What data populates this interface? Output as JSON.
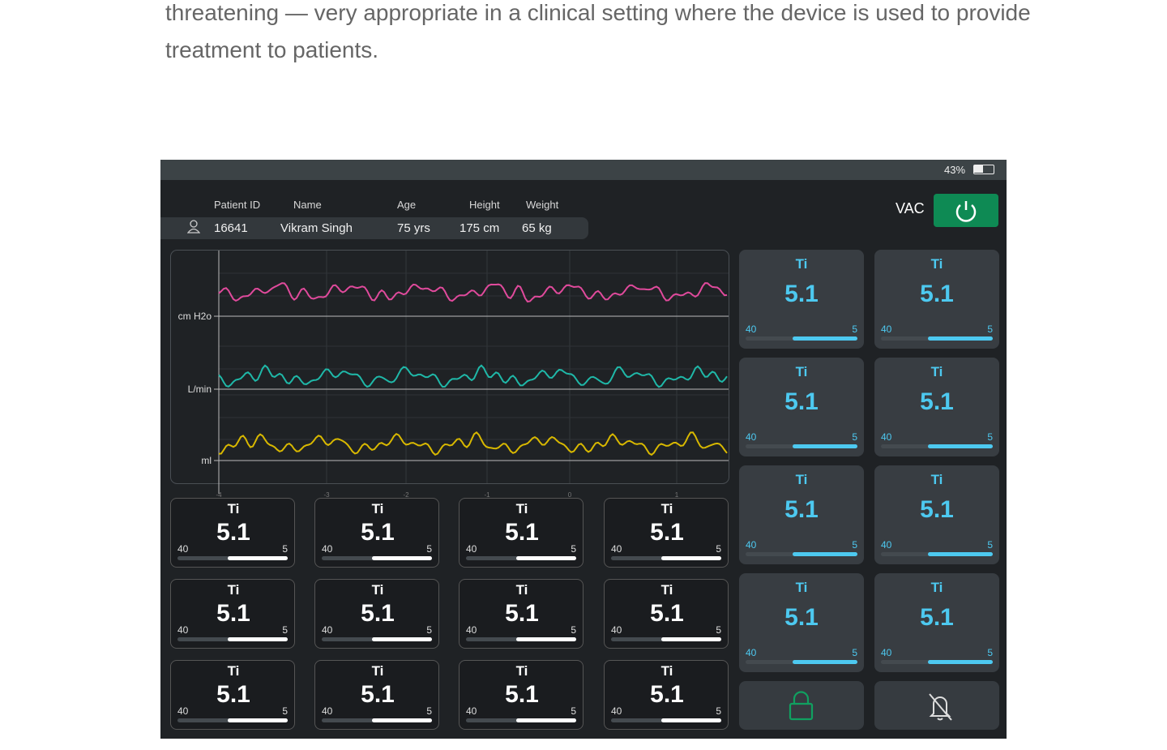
{
  "article": {
    "lines": [
      "threatening — very appropriate in a clinical setting where the device is used to provide",
      "treatment to patients."
    ]
  },
  "device": {
    "battery": "43%",
    "patient": {
      "headers": [
        "Patient ID",
        "Name",
        "Age",
        "Height",
        "Weight"
      ],
      "values": [
        "16641",
        "Vikram Singh",
        "75 yrs",
        "175 cm",
        "65 kg"
      ]
    },
    "mode": "VAC",
    "chart": {
      "axis_labels": [
        "cm H2o",
        "L/min",
        "ml"
      ],
      "x_ticks": [
        "-4",
        "-3",
        "-2",
        "-1",
        "0",
        "1"
      ]
    },
    "left_tiles": [
      {
        "label": "Ti",
        "value": "5.1",
        "min": "40",
        "max": "5"
      },
      {
        "label": "Ti",
        "value": "5.1",
        "min": "40",
        "max": "5"
      },
      {
        "label": "Ti",
        "value": "5.1",
        "min": "40",
        "max": "5"
      },
      {
        "label": "Ti",
        "value": "5.1",
        "min": "40",
        "max": "5"
      },
      {
        "label": "Ti",
        "value": "5.1",
        "min": "40",
        "max": "5"
      },
      {
        "label": "Ti",
        "value": "5.1",
        "min": "40",
        "max": "5"
      },
      {
        "label": "Ti",
        "value": "5.1",
        "min": "40",
        "max": "5"
      },
      {
        "label": "Ti",
        "value": "5.1",
        "min": "40",
        "max": "5"
      },
      {
        "label": "Ti",
        "value": "5.1",
        "min": "40",
        "max": "5"
      },
      {
        "label": "Ti",
        "value": "5.1",
        "min": "40",
        "max": "5"
      },
      {
        "label": "Ti",
        "value": "5.1",
        "min": "40",
        "max": "5"
      },
      {
        "label": "Ti",
        "value": "5.1",
        "min": "40",
        "max": "5"
      }
    ],
    "right_tiles": [
      {
        "label": "Ti",
        "value": "5.1",
        "min": "40",
        "max": "5"
      },
      {
        "label": "Ti",
        "value": "5.1",
        "min": "40",
        "max": "5"
      },
      {
        "label": "Ti",
        "value": "5.1",
        "min": "40",
        "max": "5"
      },
      {
        "label": "Ti",
        "value": "5.1",
        "min": "40",
        "max": "5"
      },
      {
        "label": "Ti",
        "value": "5.1",
        "min": "40",
        "max": "5"
      },
      {
        "label": "Ti",
        "value": "5.1",
        "min": "40",
        "max": "5"
      },
      {
        "label": "Ti",
        "value": "5.1",
        "min": "40",
        "max": "5"
      },
      {
        "label": "Ti",
        "value": "5.1",
        "min": "40",
        "max": "5"
      }
    ]
  }
}
